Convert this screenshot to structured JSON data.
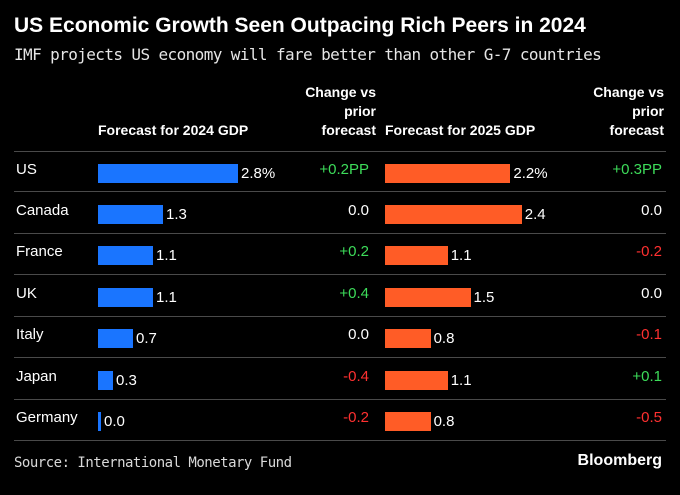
{
  "title": "US Economic Growth Seen Outpacing Rich Peers in 2024",
  "subtitle": "IMF projects US economy will fare better than other G-7 countries",
  "source": "Source: International Monetary Fund",
  "brand": "Bloomberg",
  "colors": {
    "bar_2024": "#1a75ff",
    "bar_2025": "#ff5c26",
    "positive": "#3ddc5a",
    "negative": "#ff3030",
    "neutral": "#ffffff"
  },
  "chart_data": {
    "type": "bar",
    "title": "US Economic Growth Seen Outpacing Rich Peers in 2024",
    "subtitle": "IMF projects US economy will fare better than other G-7 countries",
    "columns": {
      "gdp_2024": "Forecast for 2024 GDP",
      "change_2024": "Change vs prior forecast",
      "gdp_2025": "Forecast for 2025 GDP",
      "change_2025": "Change vs prior forecast"
    },
    "categories": [
      "US",
      "Canada",
      "France",
      "UK",
      "Italy",
      "Japan",
      "Germany"
    ],
    "series": [
      {
        "name": "Forecast for 2024 GDP",
        "values": [
          2.8,
          1.3,
          1.1,
          1.1,
          0.7,
          0.3,
          0.0
        ]
      },
      {
        "name": "Forecast for 2025 GDP",
        "values": [
          2.2,
          2.4,
          1.1,
          1.5,
          0.8,
          1.1,
          0.8
        ]
      }
    ],
    "rows": [
      {
        "country": "US",
        "gdp_2024": 2.8,
        "label_2024": "2.8%",
        "change_2024": "+0.2PP",
        "dir_2024": "positive",
        "gdp_2025": 2.2,
        "label_2025": "2.2%",
        "change_2025": "+0.3PP",
        "dir_2025": "positive"
      },
      {
        "country": "Canada",
        "gdp_2024": 1.3,
        "label_2024": "1.3",
        "change_2024": "0.0",
        "dir_2024": "neutral",
        "gdp_2025": 2.4,
        "label_2025": "2.4",
        "change_2025": "0.0",
        "dir_2025": "neutral"
      },
      {
        "country": "France",
        "gdp_2024": 1.1,
        "label_2024": "1.1",
        "change_2024": "+0.2",
        "dir_2024": "positive",
        "gdp_2025": 1.1,
        "label_2025": "1.1",
        "change_2025": "-0.2",
        "dir_2025": "negative"
      },
      {
        "country": "UK",
        "gdp_2024": 1.1,
        "label_2024": "1.1",
        "change_2024": "+0.4",
        "dir_2024": "positive",
        "gdp_2025": 1.5,
        "label_2025": "1.5",
        "change_2025": "0.0",
        "dir_2025": "neutral"
      },
      {
        "country": "Italy",
        "gdp_2024": 0.7,
        "label_2024": "0.7",
        "change_2024": "0.0",
        "dir_2024": "neutral",
        "gdp_2025": 0.8,
        "label_2025": "0.8",
        "change_2025": "-0.1",
        "dir_2025": "negative"
      },
      {
        "country": "Japan",
        "gdp_2024": 0.3,
        "label_2024": "0.3",
        "change_2024": "-0.4",
        "dir_2024": "negative",
        "gdp_2025": 1.1,
        "label_2025": "1.1",
        "change_2025": "+0.1",
        "dir_2025": "positive"
      },
      {
        "country": "Germany",
        "gdp_2024": 0.0,
        "label_2024": "0.0",
        "change_2024": "-0.2",
        "dir_2024": "negative",
        "gdp_2025": 0.8,
        "label_2025": "0.8",
        "change_2025": "-0.5",
        "dir_2025": "negative"
      }
    ]
  }
}
